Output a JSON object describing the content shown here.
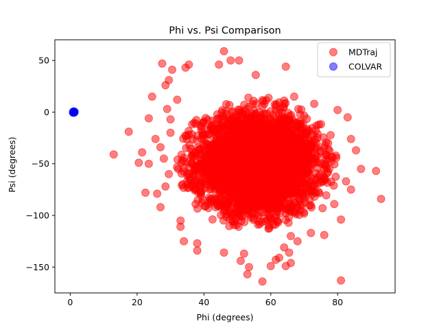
{
  "chart_data": {
    "type": "scatter",
    "title": "Phi vs. Psi Comparison",
    "xlabel": "Phi (degrees)",
    "ylabel": "Psi (degrees)",
    "xlim": [
      -4.6,
      97.2
    ],
    "ylim": [
      -175,
      70
    ],
    "xticks": [
      0,
      20,
      40,
      60,
      80
    ],
    "yticks": [
      50,
      0,
      -50,
      -100,
      -150
    ],
    "xtick_labels": [
      "0",
      "20",
      "40",
      "60",
      "80"
    ],
    "ytick_labels": [
      "50",
      "0",
      "−50",
      "−100",
      "−150"
    ],
    "grid": false,
    "legend_position": "top-right",
    "series": [
      {
        "name": "MDTraj",
        "color": "#ff0000",
        "alpha": 0.5,
        "cluster": {
          "center_x": 56,
          "center_y": -50,
          "spread_x": 9,
          "spread_y": 24
        },
        "points": [
          [
            13,
            -41
          ],
          [
            17.5,
            -19
          ],
          [
            20.5,
            -49
          ],
          [
            21.5,
            -39
          ],
          [
            22.5,
            -78
          ],
          [
            23.5,
            -6
          ],
          [
            23.5,
            -50
          ],
          [
            24.5,
            15
          ],
          [
            25.5,
            -26
          ],
          [
            26,
            -79
          ],
          [
            27,
            -92
          ],
          [
            27,
            -34
          ],
          [
            27.5,
            47
          ],
          [
            28.5,
            26
          ],
          [
            28.5,
            -72
          ],
          [
            29.5,
            31
          ],
          [
            29,
            3
          ],
          [
            30.5,
            41
          ],
          [
            30,
            -7
          ],
          [
            33,
            -105
          ],
          [
            33,
            -111
          ],
          [
            34,
            -125
          ],
          [
            34.5,
            43
          ],
          [
            35.5,
            46
          ],
          [
            38,
            -127
          ],
          [
            38,
            -134
          ],
          [
            46,
            59
          ],
          [
            44.5,
            46
          ],
          [
            48,
            50
          ],
          [
            46,
            -136
          ],
          [
            50.5,
            50
          ],
          [
            52,
            -137
          ],
          [
            51,
            -144
          ],
          [
            53,
            -157
          ],
          [
            53.5,
            -150
          ],
          [
            55.5,
            36
          ],
          [
            57.5,
            -164
          ],
          [
            60,
            -149
          ],
          [
            61.5,
            -143
          ],
          [
            64.5,
            -149
          ],
          [
            62.5,
            -141
          ],
          [
            64,
            -131
          ],
          [
            66,
            -146
          ],
          [
            65.5,
            -136
          ],
          [
            64.5,
            44
          ],
          [
            66,
            -120
          ],
          [
            68,
            -125
          ],
          [
            67,
            15
          ],
          [
            72,
            -117
          ],
          [
            76,
            -119
          ],
          [
            81,
            -104
          ],
          [
            80,
            2
          ],
          [
            83,
            -5
          ],
          [
            84,
            -26
          ],
          [
            85.5,
            -37
          ],
          [
            81,
            -163
          ],
          [
            91.5,
            -57
          ],
          [
            93,
            -84
          ],
          [
            87,
            -55
          ],
          [
            82.5,
            -67
          ],
          [
            84,
            -75
          ],
          [
            40,
            -9
          ],
          [
            32,
            12
          ],
          [
            30,
            -20
          ],
          [
            29.5,
            -60
          ],
          [
            28,
            -45
          ],
          [
            75.5,
            -93
          ],
          [
            79,
            -89
          ],
          [
            73,
            8
          ]
        ]
      },
      {
        "name": "COLVAR",
        "color": "#0000ff",
        "alpha": 0.5,
        "points": [
          [
            1.0,
            0.0
          ],
          [
            1.2,
            -0.5
          ],
          [
            0.9,
            0.4
          ],
          [
            1.1,
            -0.2
          ],
          [
            1.3,
            0.3
          ],
          [
            0.8,
            -0.3
          ],
          [
            1.0,
            0.6
          ],
          [
            1.2,
            0.1
          ],
          [
            0.9,
            -0.6
          ],
          [
            1.1,
            0.5
          ]
        ]
      }
    ]
  }
}
